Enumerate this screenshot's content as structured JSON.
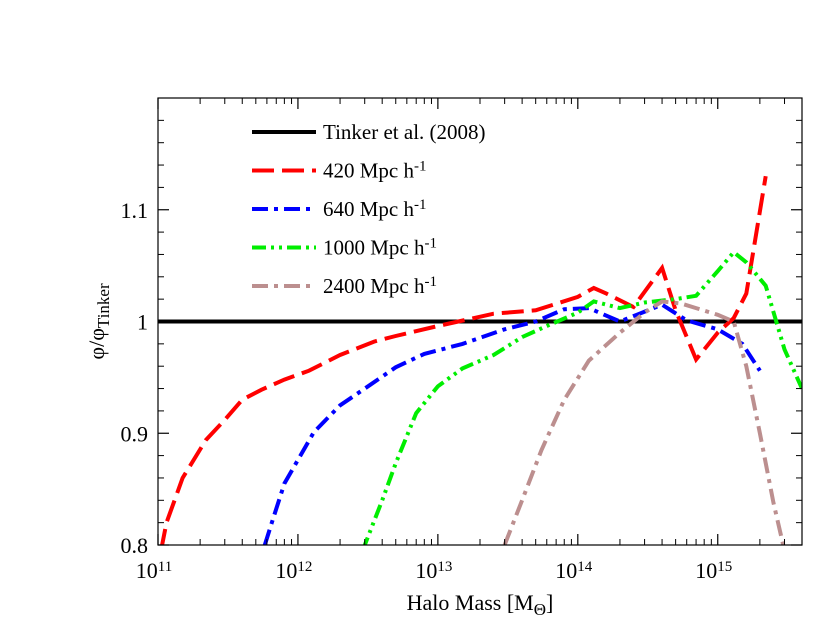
{
  "chart_data": {
    "type": "line",
    "xlabel": "Halo Mass [M",
    "xlabel_sub": "Θ",
    "xlabel_close": "]",
    "ylabel": "φ/φ",
    "ylabel_sub": "Tinker",
    "x_scale": "log",
    "xlim": [
      100000000000.0,
      4000000000000000.0
    ],
    "ylim": [
      0.8,
      1.2
    ],
    "x_ticks": [
      {
        "base": "10",
        "exp": "11",
        "value": 100000000000.0
      },
      {
        "base": "10",
        "exp": "12",
        "value": 1000000000000.0
      },
      {
        "base": "10",
        "exp": "13",
        "value": 10000000000000.0
      },
      {
        "base": "10",
        "exp": "14",
        "value": 100000000000000.0
      },
      {
        "base": "10",
        "exp": "15",
        "value": 1000000000000000.0
      }
    ],
    "y_ticks": [
      {
        "label": "0.8",
        "value": 0.8
      },
      {
        "label": "0.9",
        "value": 0.9
      },
      {
        "label": "1",
        "value": 1.0
      },
      {
        "label": "1.1",
        "value": 1.1
      }
    ],
    "legend_position": "top-left",
    "series": [
      {
        "name": "Tinker et al. (2008)",
        "superscript": "",
        "color": "#000000",
        "dash": "solid",
        "points": [
          [
            100000000000.0,
            1.0
          ],
          [
            4000000000000000.0,
            1.0
          ]
        ]
      },
      {
        "name": "420 Mpc h",
        "superscript": "-1",
        "color": "#ff0000",
        "dash": "long-dash",
        "points": [
          [
            105000000000.0,
            0.795
          ],
          [
            115000000000.0,
            0.82
          ],
          [
            150000000000.0,
            0.86
          ],
          [
            220000000000.0,
            0.894
          ],
          [
            300000000000.0,
            0.912
          ],
          [
            400000000000.0,
            0.93
          ],
          [
            550000000000.0,
            0.939
          ],
          [
            800000000000.0,
            0.948
          ],
          [
            1200000000000.0,
            0.956
          ],
          [
            2000000000000.0,
            0.97
          ],
          [
            3500000000000.0,
            0.982
          ],
          [
            5000000000000.0,
            0.987
          ],
          [
            10000000000000.0,
            0.996
          ],
          [
            25000000000000.0,
            1.007
          ],
          [
            50000000000000.0,
            1.01
          ],
          [
            100000000000000.0,
            1.022
          ],
          [
            130000000000000.0,
            1.03
          ],
          [
            160000000000000.0,
            1.025
          ],
          [
            250000000000000.0,
            1.013
          ],
          [
            400000000000000.0,
            1.048
          ],
          [
            500000000000000.0,
            1.01
          ],
          [
            700000000000000.0,
            0.966
          ],
          [
            1000000000000000.0,
            0.99
          ],
          [
            1300000000000000.0,
            1.003
          ],
          [
            1600000000000000.0,
            1.025
          ],
          [
            2200000000000000.0,
            1.13
          ]
        ]
      },
      {
        "name": "640 Mpc h",
        "superscript": "-1",
        "color": "#0000ff",
        "dash": "dash-dot",
        "points": [
          [
            580000000000.0,
            0.8
          ],
          [
            650000000000.0,
            0.82
          ],
          [
            800000000000.0,
            0.855
          ],
          [
            1300000000000.0,
            0.901
          ],
          [
            2000000000000.0,
            0.925
          ],
          [
            3000000000000.0,
            0.94
          ],
          [
            5000000000000.0,
            0.959
          ],
          [
            8000000000000.0,
            0.971
          ],
          [
            15000000000000.0,
            0.98
          ],
          [
            30000000000000.0,
            0.993
          ],
          [
            50000000000000.0,
            1.0
          ],
          [
            80000000000000.0,
            1.011
          ],
          [
            120000000000000.0,
            1.012
          ],
          [
            200000000000000.0,
            1.0
          ],
          [
            400000000000000.0,
            1.015
          ],
          [
            600000000000000.0,
            1.001
          ],
          [
            1000000000000000.0,
            0.993
          ],
          [
            1500000000000000.0,
            0.98
          ],
          [
            2000000000000000.0,
            0.956
          ]
        ]
      },
      {
        "name": "1000 Mpc h",
        "superscript": "-1",
        "color": "#00ee00",
        "dash": "dash-dot-dot",
        "points": [
          [
            2900000000000.0,
            0.795
          ],
          [
            4000000000000.0,
            0.84
          ],
          [
            5000000000000.0,
            0.873
          ],
          [
            7000000000000.0,
            0.918
          ],
          [
            10000000000000.0,
            0.942
          ],
          [
            15000000000000.0,
            0.958
          ],
          [
            25000000000000.0,
            0.97
          ],
          [
            40000000000000.0,
            0.986
          ],
          [
            60000000000000.0,
            0.996
          ],
          [
            100000000000000.0,
            1.008
          ],
          [
            130000000000000.0,
            1.018
          ],
          [
            200000000000000.0,
            1.012
          ],
          [
            300000000000000.0,
            1.017
          ],
          [
            500000000000000.0,
            1.02
          ],
          [
            700000000000000.0,
            1.023
          ],
          [
            1000000000000000.0,
            1.045
          ],
          [
            1300000000000000.0,
            1.062
          ],
          [
            1600000000000000.0,
            1.053
          ],
          [
            2200000000000000.0,
            1.032
          ],
          [
            3000000000000000.0,
            0.975
          ],
          [
            4000000000000000.0,
            0.94
          ]
        ]
      },
      {
        "name": "2400 Mpc h",
        "superscript": "-1",
        "color": "#bc8f8f",
        "dash": "dash-dot",
        "points": [
          [
            30000000000000.0,
            0.8
          ],
          [
            40000000000000.0,
            0.84
          ],
          [
            55000000000000.0,
            0.885
          ],
          [
            80000000000000.0,
            0.93
          ],
          [
            120000000000000.0,
            0.965
          ],
          [
            200000000000000.0,
            0.99
          ],
          [
            300000000000000.0,
            1.008
          ],
          [
            400000000000000.0,
            1.018
          ],
          [
            550000000000000.0,
            1.016
          ],
          [
            700000000000000.0,
            1.012
          ],
          [
            1000000000000000.0,
            1.006
          ],
          [
            1300000000000000.0,
            1.0
          ],
          [
            1600000000000000.0,
            0.96
          ],
          [
            2000000000000000.0,
            0.9
          ],
          [
            2500000000000000.0,
            0.838
          ],
          [
            3000000000000000.0,
            0.795
          ]
        ]
      }
    ]
  }
}
